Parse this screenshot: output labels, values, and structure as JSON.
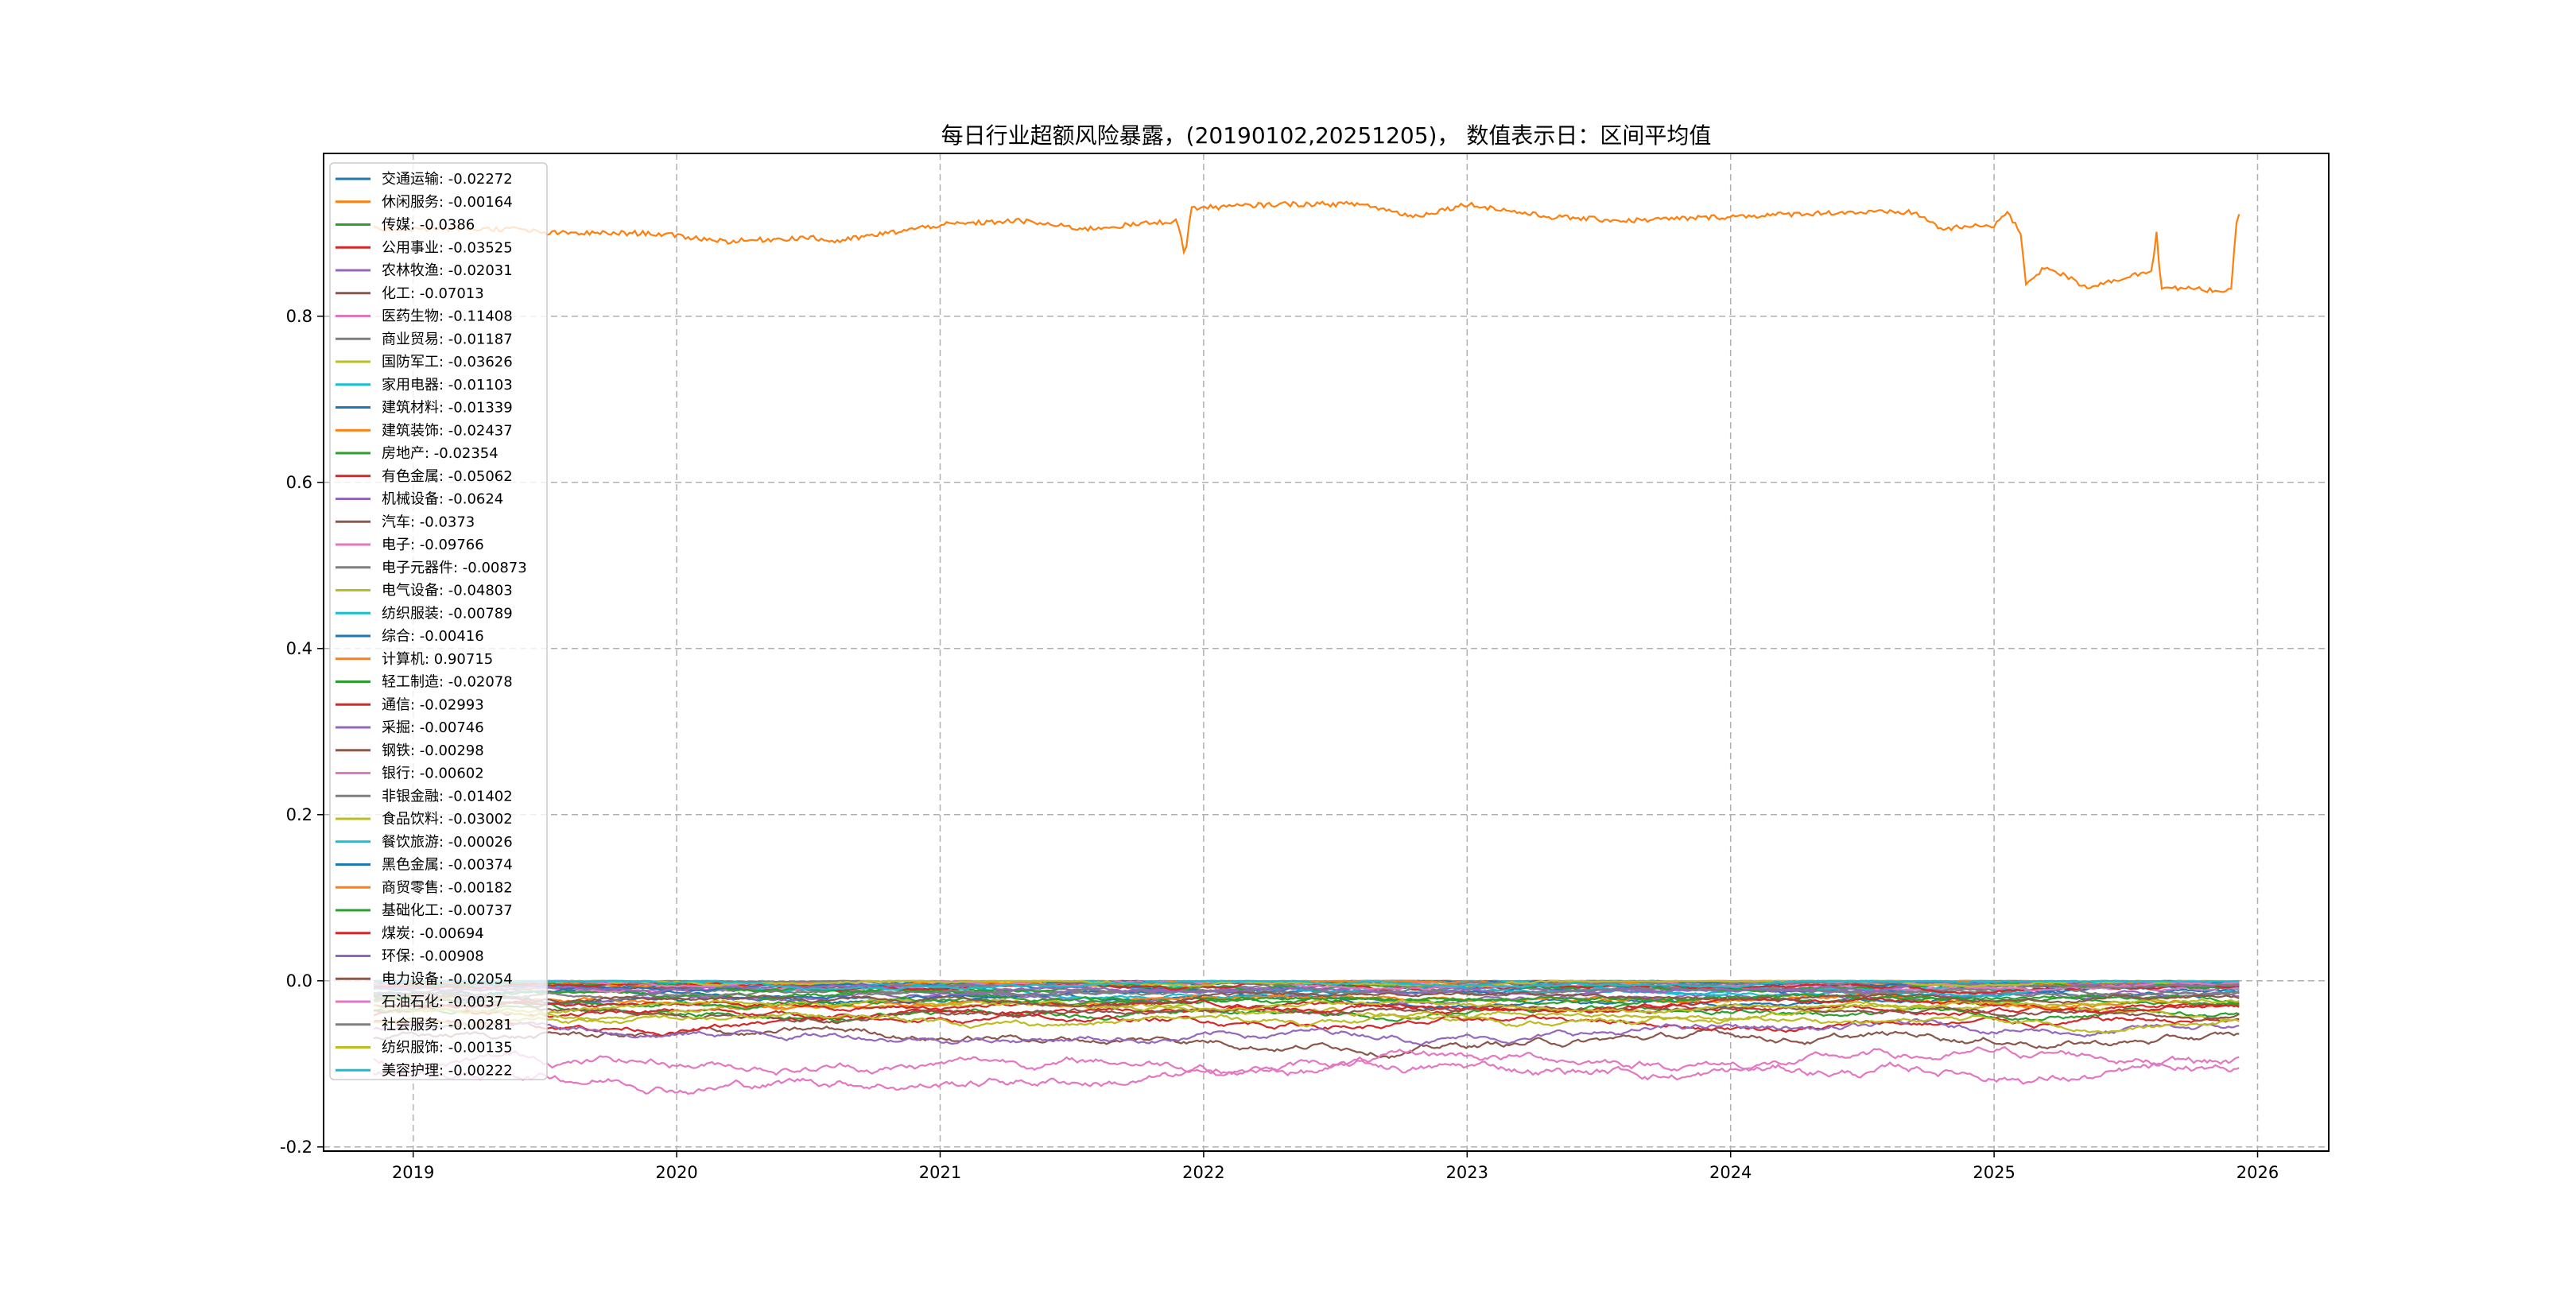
{
  "chart_data": {
    "type": "line",
    "title": "每日行业超额风险暴露，(20190102,20251205)， 数值表示日：区间平均值",
    "xlabel": "",
    "ylabel": "",
    "xlim": [
      2018.66,
      2026.27
    ],
    "ylim": [
      -0.205,
      0.996
    ],
    "grid": true,
    "legend_placement": "upper-left",
    "x_ticks": [
      "2019",
      "2020",
      "2021",
      "2022",
      "2023",
      "2024",
      "2025",
      "2026"
    ],
    "y_ticks": [
      "-0.2",
      "0.0",
      "0.2",
      "0.4",
      "0.6",
      "0.8"
    ],
    "x_range_of_data": [
      2018.85,
      2025.93
    ],
    "series": [
      {
        "name": "交通运输",
        "mean": -0.02272,
        "label": "交通运输: -0.02272",
        "color": "#1f77b4"
      },
      {
        "name": "休闲服务",
        "mean": -0.00164,
        "label": "休闲服务: -0.00164",
        "color": "#ff7f0e"
      },
      {
        "name": "传媒",
        "mean": -0.0386,
        "label": "传媒: -0.0386",
        "color": "#2ca02c"
      },
      {
        "name": "公用事业",
        "mean": -0.03525,
        "label": "公用事业: -0.03525",
        "color": "#d62728"
      },
      {
        "name": "农林牧渔",
        "mean": -0.02031,
        "label": "农林牧渔: -0.02031",
        "color": "#9467bd"
      },
      {
        "name": "化工",
        "mean": -0.07013,
        "label": "化工: -0.07013",
        "color": "#8c564b"
      },
      {
        "name": "医药生物",
        "mean": -0.11408,
        "label": "医药生物: -0.11408",
        "color": "#e377c2"
      },
      {
        "name": "商业贸易",
        "mean": -0.01187,
        "label": "商业贸易: -0.01187",
        "color": "#7f7f7f"
      },
      {
        "name": "国防军工",
        "mean": -0.03626,
        "label": "国防军工: -0.03626",
        "color": "#bcbd22"
      },
      {
        "name": "家用电器",
        "mean": -0.01103,
        "label": "家用电器: -0.01103",
        "color": "#17becf"
      },
      {
        "name": "建筑材料",
        "mean": -0.01339,
        "label": "建筑材料: -0.01339",
        "color": "#1f77b4"
      },
      {
        "name": "建筑装饰",
        "mean": -0.02437,
        "label": "建筑装饰: -0.02437",
        "color": "#ff7f0e"
      },
      {
        "name": "房地产",
        "mean": -0.02354,
        "label": "房地产: -0.02354",
        "color": "#2ca02c"
      },
      {
        "name": "有色金属",
        "mean": -0.05062,
        "label": "有色金属: -0.05062",
        "color": "#d62728"
      },
      {
        "name": "机械设备",
        "mean": -0.0624,
        "label": "机械设备: -0.0624",
        "color": "#9467bd"
      },
      {
        "name": "汽车",
        "mean": -0.0373,
        "label": "汽车: -0.0373",
        "color": "#8c564b"
      },
      {
        "name": "电子",
        "mean": -0.09766,
        "label": "电子: -0.09766",
        "color": "#e377c2"
      },
      {
        "name": "电子元器件",
        "mean": -0.00873,
        "label": "电子元器件: -0.00873",
        "color": "#7f7f7f"
      },
      {
        "name": "电气设备",
        "mean": -0.04803,
        "label": "电气设备: -0.04803",
        "color": "#bcbd22"
      },
      {
        "name": "纺织服装",
        "mean": -0.00789,
        "label": "纺织服装: -0.00789",
        "color": "#17becf"
      },
      {
        "name": "综合",
        "mean": -0.00416,
        "label": "综合: -0.00416",
        "color": "#1f77b4"
      },
      {
        "name": "计算机",
        "mean": 0.90715,
        "label": "计算机: 0.90715",
        "color": "#ff7f0e",
        "points": [
          [
            2018.85,
            0.905
          ],
          [
            2019.4,
            0.905
          ],
          [
            2019.5,
            0.9
          ],
          [
            2019.9,
            0.9
          ],
          [
            2020.2,
            0.89
          ],
          [
            2020.5,
            0.895
          ],
          [
            2020.6,
            0.89
          ],
          [
            2021.0,
            0.91
          ],
          [
            2021.3,
            0.915
          ],
          [
            2021.55,
            0.905
          ],
          [
            2021.9,
            0.915
          ],
          [
            2021.93,
            0.87
          ],
          [
            2021.95,
            0.93
          ],
          [
            2022.3,
            0.935
          ],
          [
            2022.6,
            0.935
          ],
          [
            2022.8,
            0.92
          ],
          [
            2023.0,
            0.935
          ],
          [
            2023.3,
            0.92
          ],
          [
            2023.6,
            0.915
          ],
          [
            2024.0,
            0.92
          ],
          [
            2024.4,
            0.925
          ],
          [
            2024.7,
            0.925
          ],
          [
            2024.8,
            0.905
          ],
          [
            2025.0,
            0.91
          ],
          [
            2025.05,
            0.925
          ],
          [
            2025.1,
            0.9
          ],
          [
            2025.12,
            0.84
          ],
          [
            2025.2,
            0.86
          ],
          [
            2025.35,
            0.835
          ],
          [
            2025.6,
            0.855
          ],
          [
            2025.62,
            0.915
          ],
          [
            2025.63,
            0.835
          ],
          [
            2025.9,
            0.83
          ],
          [
            2025.92,
            0.915
          ],
          [
            2025.93,
            0.92
          ]
        ]
      },
      {
        "name": "轻工制造",
        "mean": -0.02078,
        "label": "轻工制造: -0.02078",
        "color": "#2ca02c"
      },
      {
        "name": "通信",
        "mean": -0.02993,
        "label": "通信: -0.02993",
        "color": "#d62728"
      },
      {
        "name": "采掘",
        "mean": -0.00746,
        "label": "采掘: -0.00746",
        "color": "#9467bd"
      },
      {
        "name": "钢铁",
        "mean": -0.00298,
        "label": "钢铁: -0.00298",
        "color": "#8c564b"
      },
      {
        "name": "银行",
        "mean": -0.00602,
        "label": "银行: -0.00602",
        "color": "#e377c2"
      },
      {
        "name": "非银金融",
        "mean": -0.01402,
        "label": "非银金融: -0.01402",
        "color": "#7f7f7f"
      },
      {
        "name": "食品饮料",
        "mean": -0.03002,
        "label": "食品饮料: -0.03002",
        "color": "#bcbd22"
      },
      {
        "name": "餐饮旅游",
        "mean": -0.00026,
        "label": "餐饮旅游: -0.00026",
        "color": "#17becf"
      },
      {
        "name": "黑色金属",
        "mean": -0.00374,
        "label": "黑色金属: -0.00374",
        "color": "#1f77b4"
      },
      {
        "name": "商贸零售",
        "mean": -0.00182,
        "label": "商贸零售: -0.00182",
        "color": "#ff7f0e"
      },
      {
        "name": "基础化工",
        "mean": -0.00737,
        "label": "基础化工: -0.00737",
        "color": "#2ca02c"
      },
      {
        "name": "煤炭",
        "mean": -0.00694,
        "label": "煤炭: -0.00694",
        "color": "#d62728"
      },
      {
        "name": "环保",
        "mean": -0.00908,
        "label": "环保: -0.00908",
        "color": "#9467bd"
      },
      {
        "name": "电力设备",
        "mean": -0.02054,
        "label": "电力设备: -0.02054",
        "color": "#8c564b"
      },
      {
        "name": "石油石化",
        "mean": -0.0037,
        "label": "石油石化: -0.0037",
        "color": "#e377c2"
      },
      {
        "name": "社会服务",
        "mean": -0.00281,
        "label": "社会服务: -0.00281",
        "color": "#7f7f7f"
      },
      {
        "name": "纺织服饰",
        "mean": -0.00135,
        "label": "纺织服饰: -0.00135",
        "color": "#bcbd22"
      },
      {
        "name": "美容护理",
        "mean": -0.00222,
        "label": "美容护理: -0.00222",
        "color": "#17becf"
      }
    ]
  }
}
